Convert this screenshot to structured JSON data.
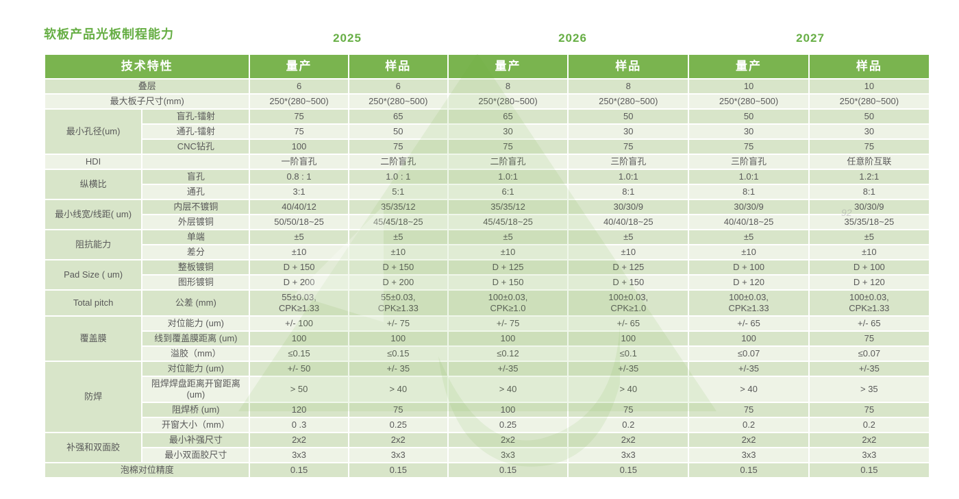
{
  "title": "软板产品光板制程能力",
  "years": [
    "2025",
    "2026",
    "2027"
  ],
  "header": {
    "feature_label": "技术特性",
    "col_labels": [
      "量产",
      "样品",
      "量产",
      "样品",
      "量产",
      "样品"
    ]
  },
  "colors": {
    "header_bg": "#7ab44f",
    "accent_green": "#66ae44",
    "band_dark": "#d8e5c9",
    "band_light": "#eef3e6",
    "cell_text": "#595959"
  },
  "watermark_text": "92",
  "rows": [
    {
      "merged_label": "叠层",
      "values": [
        "6",
        "6",
        "8",
        "8",
        "10",
        "10"
      ]
    },
    {
      "merged_label": "最大板子尺寸(mm)",
      "values": [
        "250*(280~500)",
        "250*(280~500)",
        "250*(280~500)",
        "250*(280~500)",
        "250*(280~500)",
        "250*(280~500)"
      ]
    },
    {
      "category": "最小孔径(um)",
      "cat_span": 3,
      "sub": "盲孔-镭射",
      "values": [
        "75",
        "65",
        "65",
        "50",
        "50",
        "50"
      ]
    },
    {
      "sub": "通孔-镭射",
      "values": [
        "75",
        "50",
        "30",
        "30",
        "30",
        "30"
      ]
    },
    {
      "sub": "CNC钻孔",
      "values": [
        "100",
        "75",
        "75",
        "75",
        "75",
        "75"
      ]
    },
    {
      "category": "HDI",
      "cat_span": 1,
      "sub": "",
      "values": [
        "一阶盲孔",
        "二阶盲孔",
        "二阶盲孔",
        "三阶盲孔",
        "三阶盲孔",
        "任意阶互联"
      ]
    },
    {
      "category": "纵横比",
      "cat_span": 2,
      "sub": "盲孔",
      "values": [
        "0.8 : 1",
        "1.0 : 1",
        "1.0:1",
        "1.0:1",
        "1.0:1",
        "1.2:1"
      ]
    },
    {
      "sub": "通孔",
      "values": [
        "3:1",
        "5:1",
        "6:1",
        "8:1",
        "8:1",
        "8:1"
      ]
    },
    {
      "category": "最小线宽/线距( um)",
      "cat_span": 2,
      "sub": "内层不镀铜",
      "values": [
        "40/40/12",
        "35/35/12",
        "35/35/12",
        "30/30/9",
        "30/30/9",
        "30/30/9"
      ]
    },
    {
      "sub": "外层镀铜",
      "values": [
        "50/50/18~25",
        "45/45/18~25",
        "45/45/18~25",
        "40/40/18~25",
        "40/40/18~25",
        "35/35/18~25"
      ]
    },
    {
      "category": "阻抗能力",
      "cat_span": 2,
      "sub": "单端",
      "values": [
        "±5",
        "±5",
        "±5",
        "±5",
        "±5",
        "±5"
      ]
    },
    {
      "sub": "差分",
      "values": [
        "±10",
        "±10",
        "±10",
        "±10",
        "±10",
        "±10"
      ]
    },
    {
      "category": "Pad Size ( um)",
      "cat_span": 2,
      "sub": "整板镀铜",
      "values": [
        "D + 150",
        "D + 150",
        "D + 125",
        "D + 125",
        "D + 100",
        "D + 100"
      ]
    },
    {
      "sub": "图形镀铜",
      "values": [
        "D + 200",
        "D + 200",
        "D + 150",
        "D + 150",
        "D + 120",
        "D + 120"
      ]
    },
    {
      "category": "Total pitch",
      "cat_span": 1,
      "sub": "公差 (mm)",
      "tall": true,
      "values": [
        "55±0.03,\nCPK≥1.33",
        "55±0.03,\nCPK≥1.33",
        "100±0.03,\nCPK≥1.0",
        "100±0.03,\nCPK≥1.0",
        "100±0.03,\nCPK≥1.33",
        "100±0.03,\nCPK≥1.33"
      ]
    },
    {
      "category": "覆盖膜",
      "cat_span": 3,
      "sub": "对位能力 (um)",
      "values": [
        "+/- 100",
        "+/- 75",
        "+/- 75",
        "+/- 65",
        "+/- 65",
        "+/- 65"
      ]
    },
    {
      "sub": "线到覆盖膜距离 (um)",
      "values": [
        "100",
        "100",
        "100",
        "100",
        "100",
        "75"
      ]
    },
    {
      "sub": "溢胶（mm）",
      "values": [
        "≤0.15",
        "≤0.15",
        "≤0.12",
        "≤0.1",
        "≤0.07",
        "≤0.07"
      ]
    },
    {
      "category": "防焊",
      "cat_span": 4,
      "sub": "对位能力 (um)",
      "values": [
        "+/- 50",
        "+/- 35",
        "+/-35",
        "+/-35",
        "+/-35",
        "+/-35"
      ]
    },
    {
      "sub": "阻焊焊盘距离开窗距离 (um)",
      "values": [
        "> 50",
        "> 40",
        "> 40",
        "> 40",
        "> 40",
        "> 35"
      ]
    },
    {
      "sub": "阻焊桥 (um)",
      "values": [
        "120",
        "75",
        "100",
        "75",
        "75",
        "75"
      ]
    },
    {
      "sub": "开窗大小（mm）",
      "values": [
        "0 .3",
        "0.25",
        "0.25",
        "0.2",
        "0.2",
        "0.2"
      ]
    },
    {
      "category": "补强和双面胶",
      "cat_span": 2,
      "sub": "最小补强尺寸",
      "values": [
        "2x2",
        "2x2",
        "2x2",
        "2x2",
        "2x2",
        "2x2"
      ]
    },
    {
      "sub": "最小双面胶尺寸",
      "values": [
        "3x3",
        "3x3",
        "3x3",
        "3x3",
        "3x3",
        "3x3"
      ]
    },
    {
      "merged_label": "泡棉对位精度",
      "values": [
        "0.15",
        "0.15",
        "0.15",
        "0.15",
        "0.15",
        "0.15"
      ]
    }
  ]
}
